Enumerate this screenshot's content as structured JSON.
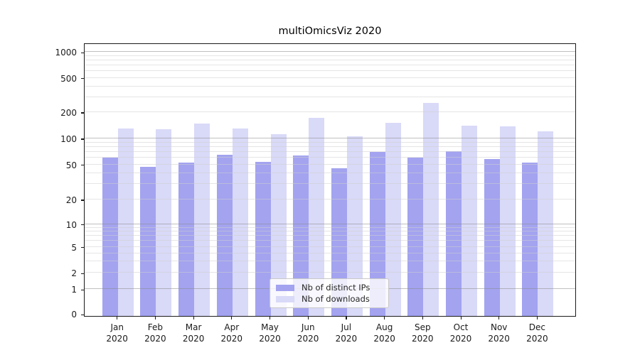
{
  "chart_data": {
    "type": "bar",
    "title": "multiOmicsViz 2020",
    "categories": [
      "Jan",
      "Feb",
      "Mar",
      "Apr",
      "May",
      "Jun",
      "Jul",
      "Aug",
      "Sep",
      "Oct",
      "Nov",
      "Dec"
    ],
    "category_year": "2020",
    "series": [
      {
        "name": "Nb of distinct IPs",
        "color": "#a3a3f0",
        "values": [
          60,
          47,
          53,
          65,
          54,
          64,
          45,
          70,
          60,
          71,
          58,
          53
        ]
      },
      {
        "name": "Nb of downloads",
        "color": "#d9d9f8",
        "values": [
          129,
          127,
          149,
          130,
          111,
          171,
          105,
          151,
          257,
          141,
          137,
          121
        ]
      }
    ],
    "yscale": "symlog",
    "yticks": [
      0,
      1,
      2,
      5,
      10,
      20,
      50,
      100,
      200,
      500,
      1000
    ],
    "ylim": [
      0,
      1280
    ],
    "xlabel": "",
    "ylabel": "",
    "grid": true,
    "legend_position": "lower center"
  }
}
